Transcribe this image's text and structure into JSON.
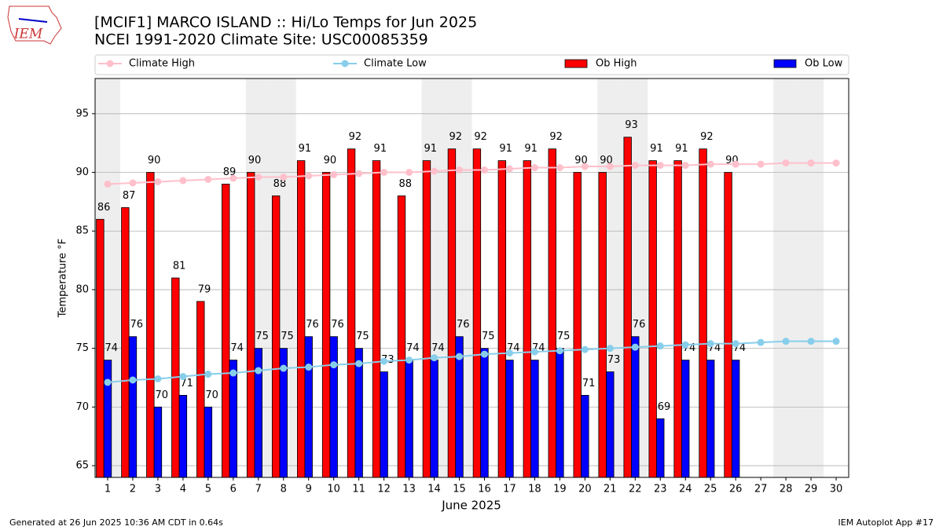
{
  "chart_data": {
    "type": "bar",
    "logo_text": "IEM",
    "title": "[MCIF1] MARCO ISLAND :: Hi/Lo Temps for Jun 2025",
    "subtitle": "NCEI 1991-2020 Climate Site: USC00085359",
    "y_label": "Temperature °F",
    "x_label": "June 2025",
    "footer_left": "Generated at 26 Jun 2025 10:36 AM CDT in 0.64s",
    "footer_right": "IEM Autoplot App #17",
    "x": [
      1,
      2,
      3,
      4,
      5,
      6,
      7,
      8,
      9,
      10,
      11,
      12,
      13,
      14,
      15,
      16,
      17,
      18,
      19,
      20,
      21,
      22,
      23,
      24,
      25,
      26,
      27,
      28,
      29,
      30
    ],
    "xlim": [
      0.5,
      30.5
    ],
    "xticks": [
      1,
      2,
      3,
      4,
      5,
      6,
      7,
      8,
      9,
      10,
      11,
      12,
      13,
      14,
      15,
      16,
      17,
      18,
      19,
      20,
      21,
      22,
      23,
      24,
      25,
      26,
      27,
      28,
      29,
      30
    ],
    "ylim": [
      64,
      98
    ],
    "yticks": [
      65,
      70,
      75,
      80,
      85,
      90,
      95
    ],
    "grid": true,
    "weekend_days": [
      1,
      7,
      8,
      14,
      15,
      21,
      22,
      28,
      29
    ],
    "weekend_color": "#eeeeee",
    "series": [
      {
        "name": "Climate High",
        "kind": "line",
        "color": "#ffc0cb",
        "values": [
          89.0,
          89.1,
          89.2,
          89.3,
          89.4,
          89.5,
          89.6,
          89.6,
          89.7,
          89.8,
          89.9,
          90.0,
          90.0,
          90.1,
          90.2,
          90.2,
          90.3,
          90.4,
          90.4,
          90.5,
          90.5,
          90.6,
          90.6,
          90.6,
          90.7,
          90.7,
          90.7,
          90.8,
          90.8,
          90.8
        ]
      },
      {
        "name": "Climate Low",
        "kind": "line",
        "color": "#87ceeb",
        "values": [
          72.1,
          72.3,
          72.4,
          72.6,
          72.8,
          72.9,
          73.1,
          73.3,
          73.4,
          73.6,
          73.7,
          73.9,
          74.0,
          74.2,
          74.3,
          74.5,
          74.6,
          74.7,
          74.8,
          74.9,
          75.0,
          75.1,
          75.2,
          75.3,
          75.4,
          75.4,
          75.5,
          75.6,
          75.6,
          75.6
        ]
      },
      {
        "name": "Ob High",
        "kind": "bar",
        "color": "#ff0000",
        "values": [
          86,
          87,
          90,
          81,
          79,
          89,
          90,
          88,
          91,
          90,
          92,
          91,
          88,
          91,
          92,
          92,
          91,
          91,
          92,
          90,
          90,
          93,
          91,
          91,
          92,
          90,
          null,
          null,
          null,
          null
        ]
      },
      {
        "name": "Ob Low",
        "kind": "bar",
        "color": "#0000ff",
        "values": [
          74,
          76,
          70,
          71,
          70,
          74,
          75,
          75,
          76,
          76,
          75,
          73,
          74,
          74,
          76,
          75,
          74,
          74,
          75,
          71,
          73,
          76,
          69,
          74,
          74,
          74,
          null,
          null,
          null,
          null
        ]
      }
    ]
  }
}
